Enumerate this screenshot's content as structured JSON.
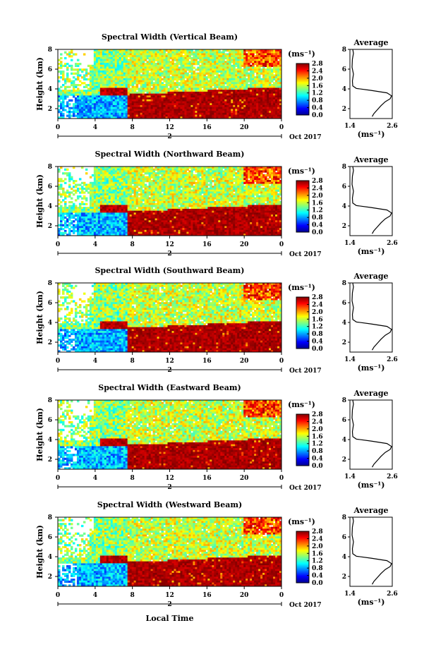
{
  "chart_data": {
    "type": "heatmap",
    "colorscale": {
      "name": "jet",
      "range": [
        0.0,
        2.8
      ],
      "ticks": [
        "2.8",
        "2.4",
        "2.0",
        "1.6",
        "1.2",
        "0.8",
        "0.4",
        "0.0"
      ],
      "unit_label": "(ms⁻¹)"
    },
    "x_axis": {
      "range": [
        0,
        24
      ],
      "ticks": [
        "0",
        "4",
        "8",
        "12",
        "16",
        "20",
        "0"
      ],
      "date_day": "2",
      "date_label": "Oct 2017",
      "xlabel": "Local Time"
    },
    "y_axis": {
      "range": [
        1,
        8
      ],
      "ticks": [
        "8",
        "6",
        "4",
        "2"
      ],
      "ylabel": "Height (km)"
    },
    "average_panel": {
      "title": "Average",
      "xlabel": "(ms⁻¹)",
      "xlim": [
        1.4,
        2.6
      ],
      "xticks": [
        "1.4",
        "2.6"
      ],
      "ylim": [
        1,
        8
      ],
      "yticks": [
        "8",
        "6",
        "4",
        "2"
      ],
      "profile": [
        {
          "h": 1.2,
          "w": 2.03
        },
        {
          "h": 1.5,
          "w": 2.08
        },
        {
          "h": 1.9,
          "w": 2.18
        },
        {
          "h": 2.3,
          "w": 2.28
        },
        {
          "h": 2.7,
          "w": 2.4
        },
        {
          "h": 3.0,
          "w": 2.54
        },
        {
          "h": 3.3,
          "w": 2.58
        },
        {
          "h": 3.6,
          "w": 2.45
        },
        {
          "h": 3.85,
          "w": 2.0
        },
        {
          "h": 4.05,
          "w": 1.58
        },
        {
          "h": 4.3,
          "w": 1.48
        },
        {
          "h": 4.8,
          "w": 1.47
        },
        {
          "h": 5.5,
          "w": 1.5
        },
        {
          "h": 6.2,
          "w": 1.46
        },
        {
          "h": 7.0,
          "w": 1.47
        },
        {
          "h": 7.6,
          "w": 1.5
        },
        {
          "h": 8.0,
          "w": 1.48
        }
      ]
    },
    "panels": [
      {
        "title": "Spectral Width (Vertical Beam)"
      },
      {
        "title": "Spectral Width (Northward Beam)"
      },
      {
        "title": "Spectral Width (Southward Beam)"
      },
      {
        "title": "Spectral Width (Eastward Beam)"
      },
      {
        "title": "Spectral Width (Westward Beam)"
      }
    ]
  }
}
